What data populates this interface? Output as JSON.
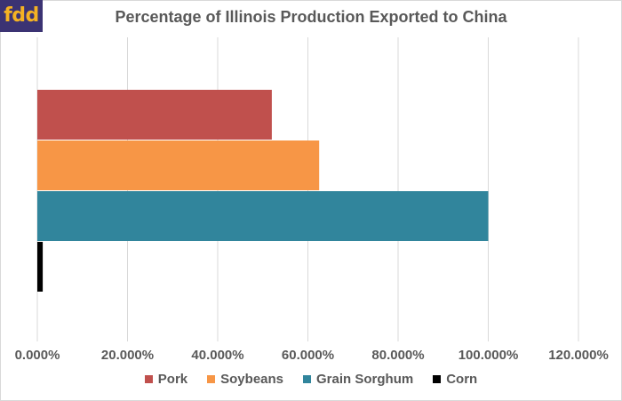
{
  "logo": {
    "text": "fdd"
  },
  "chart_data": {
    "type": "bar",
    "orientation": "horizontal",
    "title": "Percentage of Illinois Production Exported to China",
    "xlabel": "",
    "ylabel": "",
    "xlim": [
      0,
      120
    ],
    "x_ticks": [
      "0.000%",
      "20.000%",
      "40.000%",
      "60.000%",
      "80.000%",
      "100.000%",
      "120.000%"
    ],
    "grid": true,
    "legend_position": "bottom",
    "series": [
      {
        "name": "Pork",
        "value": 52,
        "color": "#c0504d"
      },
      {
        "name": "Soybeans",
        "value": 62.5,
        "color": "#f79646"
      },
      {
        "name": "Grain Sorghum",
        "value": 100,
        "color": "#31859c"
      },
      {
        "name": "Corn",
        "value": 1.2,
        "color": "#000000"
      }
    ]
  }
}
